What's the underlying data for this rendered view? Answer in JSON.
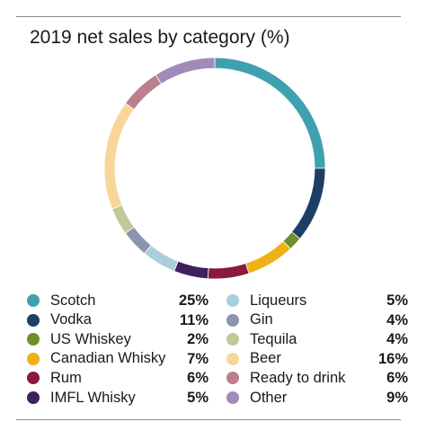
{
  "chart_data": {
    "type": "pie",
    "title": "2019 net sales by category (%)",
    "categories": [
      "Scotch",
      "Vodka",
      "US Whiskey",
      "Canadian Whisky",
      "Rum",
      "IMFL Whisky",
      "Liqueurs",
      "Gin",
      "Tequila",
      "Beer",
      "Ready to drink",
      "Other"
    ],
    "values": [
      25,
      11,
      2,
      7,
      6,
      5,
      5,
      4,
      4,
      16,
      6,
      9
    ],
    "value_labels": [
      "25%",
      "11%",
      "2%",
      "7%",
      "6%",
      "5%",
      "5%",
      "4%",
      "4%",
      "16%",
      "6%",
      "9%"
    ],
    "colors": [
      "#3fa1b0",
      "#1f3e63",
      "#6f8f2a",
      "#eeb015",
      "#8a1a3a",
      "#3e2060",
      "#a8cfda",
      "#8e93ae",
      "#bfc99a",
      "#f8d699",
      "#bc7f8c",
      "#a38ab8"
    ],
    "legend_placement": "bottom"
  }
}
